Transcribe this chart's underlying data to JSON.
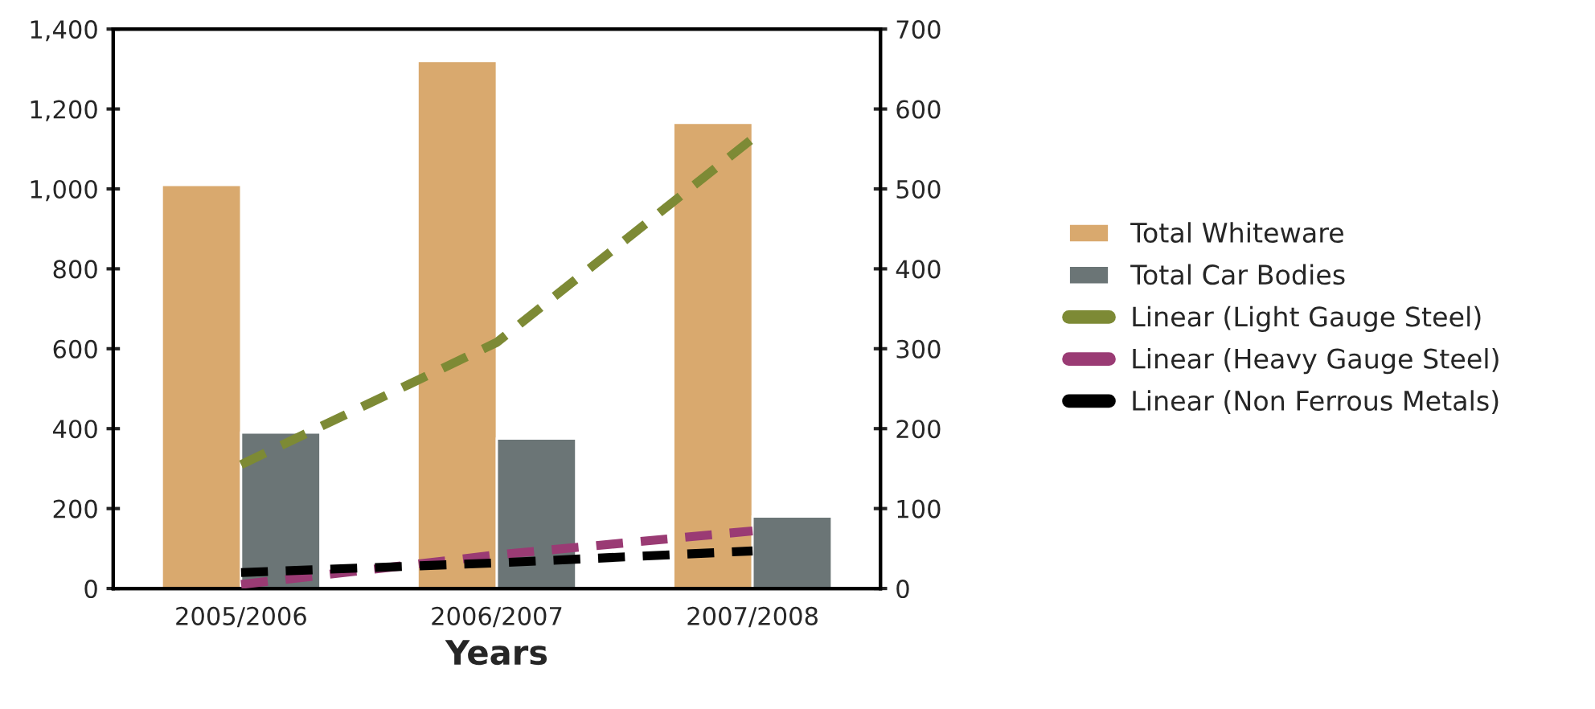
{
  "chart_data": {
    "type": "bar",
    "xlabel": "Years",
    "categories": [
      "2005/2006",
      "2006/2007",
      "2007/2008"
    ],
    "series": [
      {
        "name": "Total Whiteware",
        "color": "#d9a96e",
        "values": [
          1010,
          1320,
          1165
        ]
      },
      {
        "name": "Total Car Bodies",
        "color": "#6b7576",
        "values": [
          390,
          375,
          180
        ]
      },
      {
        "name": "Linear (Light Gauge Steel)",
        "color": "#7d8a35",
        "type": "line",
        "axis": "y2",
        "line_style": "dashed",
        "values": [
          155,
          308,
          563
        ]
      },
      {
        "name": "Linear (Heavy Gauge Steel)",
        "color": "#9a3b74",
        "type": "line",
        "axis": "y2",
        "line_style": "dashed",
        "values": [
          5,
          42,
          72
        ]
      },
      {
        "name": "Linear (Non Ferrous Metals)",
        "color": "#000000",
        "type": "line",
        "axis": "y2",
        "line_style": "dashed",
        "values": [
          20,
          32,
          47
        ]
      }
    ],
    "ylim": [
      0,
      1400
    ],
    "yticks": [
      0,
      200,
      400,
      600,
      800,
      {
        "value": 1000,
        "label": "1,000"
      },
      {
        "value": 1200,
        "label": "1,200"
      },
      {
        "value": 1400,
        "label": "1,400"
      }
    ],
    "y2lim": [
      0,
      700
    ],
    "y2ticks": [
      0,
      100,
      200,
      300,
      400,
      500,
      600,
      700
    ],
    "grid": false,
    "legend": "right"
  }
}
